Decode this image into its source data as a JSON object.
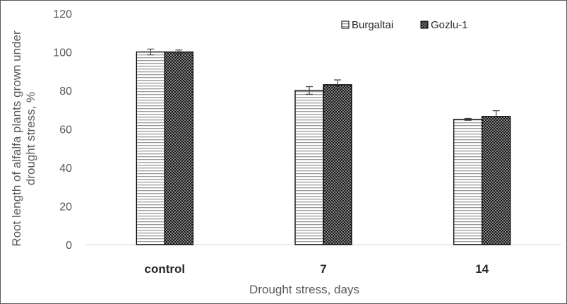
{
  "chart_data": {
    "type": "bar",
    "title": "",
    "xlabel": "Drought stress, days",
    "ylabel": "Root length of alfalfa plants grown under drought stress, %",
    "ylabel_lines": [
      "Root length of alfalfa plants grown under",
      "drought stress, %"
    ],
    "ylim": [
      0,
      120
    ],
    "yticks": [
      0,
      20,
      40,
      60,
      80,
      100,
      120
    ],
    "categories": [
      "control",
      "7",
      "14"
    ],
    "series": [
      {
        "name": "Burgaltai",
        "pattern": "horizontal-stripes",
        "values": [
          100,
          80,
          65
        ],
        "errors": [
          1.5,
          2,
          0.5
        ]
      },
      {
        "name": "Gozlu-1",
        "pattern": "dots",
        "values": [
          100,
          83,
          66.5
        ],
        "errors": [
          1,
          2.5,
          3
        ]
      }
    ],
    "legend_position": "top-right",
    "grid": false
  },
  "colors": {
    "bar_stroke": "#000000",
    "axis": "#d9d9d9",
    "text": "#595959"
  }
}
